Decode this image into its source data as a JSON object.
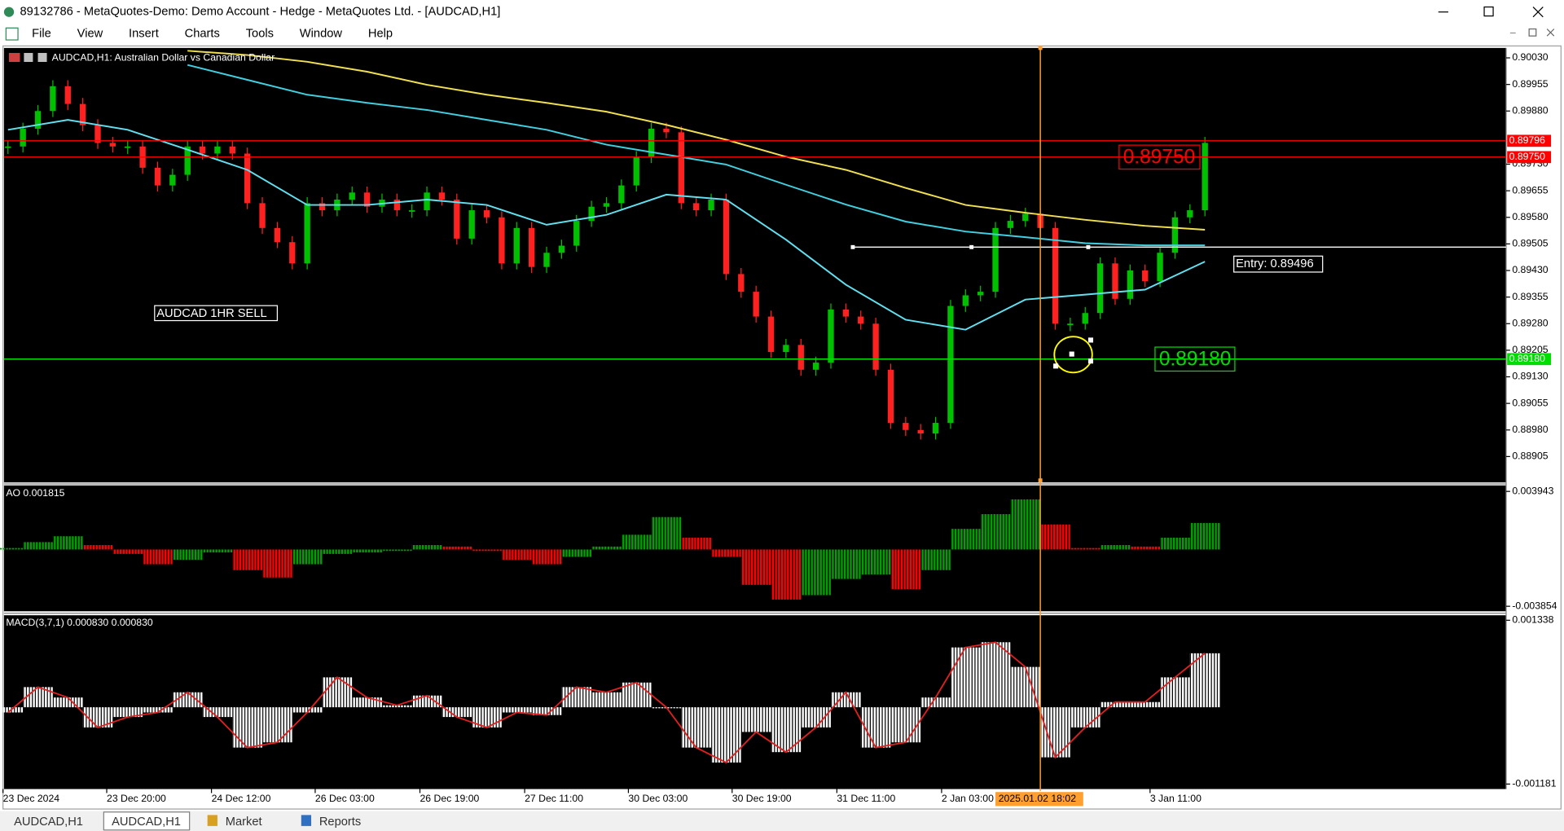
{
  "window": {
    "title": "89132786 - MetaQuotes-Demo: Demo Account - Hedge - MetaQuotes Ltd. - [AUDCAD,H1]",
    "menu": [
      "File",
      "View",
      "Insert",
      "Charts",
      "Tools",
      "Window",
      "Help"
    ]
  },
  "chart": {
    "symbol_label": "AUDCAD,H1:  Australian Dollar vs Canadian Dollar",
    "annotation": "AUDCAD 1HR SELL",
    "ylim": [
      0.88832,
      0.90058
    ],
    "yticks": [
      {
        "value": 0.9003,
        "label": "0.90030"
      },
      0.89955,
      {
        "value": 0.8988,
        "label": "0.89880"
      },
      {
        "value": 0.8973,
        "label": "0.89730"
      },
      0.89655,
      {
        "value": 0.8958,
        "label": "0.89580"
      },
      0.89505,
      {
        "value": 0.8943,
        "label": "0.89430"
      },
      0.89355,
      {
        "value": 0.8928,
        "label": "0.89280"
      },
      0.89205,
      {
        "value": 0.8913,
        "label": "0.89130"
      },
      0.89055,
      {
        "value": 0.8898,
        "label": "0.88980"
      },
      0.88905
    ],
    "closes": [
      0.8978,
      0.8983,
      0.8988,
      0.8995,
      0.899,
      0.8984,
      0.8979,
      0.8978,
      0.8978,
      0.8972,
      0.8967,
      0.897,
      0.8978,
      0.8976,
      0.8978,
      0.8976,
      0.8962,
      0.8955,
      0.8951,
      0.8945,
      0.8962,
      0.896,
      0.8963,
      0.8965,
      0.8961,
      0.8963,
      0.896,
      0.896,
      0.8965,
      0.8963,
      0.8952,
      0.896,
      0.8958,
      0.8945,
      0.8955,
      0.8944,
      0.8948,
      0.895,
      0.8957,
      0.8961,
      0.8962,
      0.8967,
      0.8975,
      0.8983,
      0.8982,
      0.8962,
      0.896,
      0.8963,
      0.8942,
      0.8937,
      0.893,
      0.892,
      0.8922,
      0.8915,
      0.8917,
      0.8932,
      0.893,
      0.8928,
      0.8915,
      0.89,
      0.8898,
      0.8897,
      0.89,
      0.8933,
      0.8936,
      0.8937,
      0.8955,
      0.8957,
      0.8959,
      0.8955,
      0.8928,
      0.8928,
      0.8931,
      0.8945,
      0.8935,
      0.8943,
      0.894,
      0.8948,
      0.8958,
      0.896,
      0.8979
    ],
    "ma_slow_yellow": [
      null,
      null,
      null,
      0.9005,
      0.90038,
      0.90019,
      0.89991,
      0.89954,
      0.89926,
      0.89903,
      0.89878,
      0.89841,
      0.89799,
      0.89751,
      0.89714,
      0.89663,
      0.89615,
      0.89593,
      0.89573,
      0.89556,
      0.89545
    ],
    "ma_slow_cyan": [
      null,
      null,
      null,
      0.9001,
      0.89968,
      0.89926,
      0.89903,
      0.89883,
      0.89855,
      0.89827,
      0.89785,
      0.89757,
      0.89729,
      0.89672,
      0.89616,
      0.89568,
      0.8954,
      0.89524,
      0.89507,
      0.89501,
      0.89501
    ],
    "ma_fast": [
      0.89827,
      0.89855,
      0.89827,
      0.89771,
      0.89714,
      0.89615,
      0.89615,
      0.8963,
      0.89615,
      0.89559,
      0.89587,
      0.89644,
      0.8963,
      0.89517,
      0.8939,
      0.89291,
      0.89263,
      0.89348,
      0.89362,
      0.89376,
      0.89455
    ],
    "levels": [
      {
        "value": 0.89796,
        "label": "0.89796",
        "color": "#ff0000"
      },
      {
        "value": 0.8975,
        "label": "0.89750",
        "color": "#ff0000"
      },
      {
        "value": 0.8918,
        "label": "0.89180",
        "color": "#00dd00"
      }
    ],
    "entry": {
      "value": 0.89496,
      "label": "Entry: 0.89496"
    },
    "time_labels": [
      "23 Dec 2024",
      "23 Dec 20:00",
      "24 Dec 12:00",
      "26 Dec 03:00",
      "26 Dec 19:00",
      "27 Dec 11:00",
      "30 Dec 03:00",
      "30 Dec 19:00",
      "31 Dec 11:00",
      "2 Jan 03:00",
      "3 Jan 11:00"
    ],
    "cursor_time": "2025.01.02 18:02"
  },
  "ao": {
    "label": "AO 0.001815",
    "ylim": [
      -0.003854,
      0.003943
    ],
    "yticks": [
      -0.003854,
      0.003943
    ],
    "values": [
      0.0001,
      0.0005,
      0.0009,
      0.0003,
      -0.0003,
      -0.001,
      -0.0007,
      -0.0002,
      -0.0014,
      -0.0019,
      -0.001,
      -0.0003,
      -0.0002,
      -0.0001,
      0.0003,
      0.0002,
      -0.0001,
      -0.0007,
      -0.001,
      -0.0005,
      0.0002,
      0.001,
      0.0022,
      0.0008,
      -0.0005,
      -0.0024,
      -0.0034,
      -0.0031,
      -0.002,
      -0.0017,
      -0.0027,
      -0.0014,
      0.0014,
      0.0024,
      0.0034,
      0.0017,
      0.0001,
      0.0003,
      0.0002,
      0.0008,
      0.0018
    ]
  },
  "macd": {
    "label": "MACD(3,7,1) 0.000830 0.000830",
    "ylim": [
      -0.001181,
      0.001338
    ],
    "yticks": [
      -0.001181,
      0.001338
    ],
    "values": [
      -8e-05,
      0.00031,
      0.00015,
      -0.00031,
      -0.00015,
      -8e-05,
      0.00023,
      -0.00015,
      -0.00062,
      -0.00054,
      -8e-05,
      0.00046,
      0.00015,
      3e-05,
      0.00018,
      -0.00015,
      -0.00031,
      -8e-05,
      -0.00012,
      0.00031,
      0.00023,
      0.00038,
      0,
      -0.00062,
      -0.00085,
      -0.00038,
      -0.00069,
      -0.00031,
      0.00023,
      -0.00062,
      -0.00054,
      0.00015,
      0.00092,
      0.001,
      0.00062,
      -0.00077,
      -0.00031,
      8e-05,
      8e-05,
      0.00046,
      0.00083
    ]
  },
  "tabs": [
    "AUDCAD,H1",
    "AUDCAD,H1",
    "Market",
    "Reports"
  ]
}
